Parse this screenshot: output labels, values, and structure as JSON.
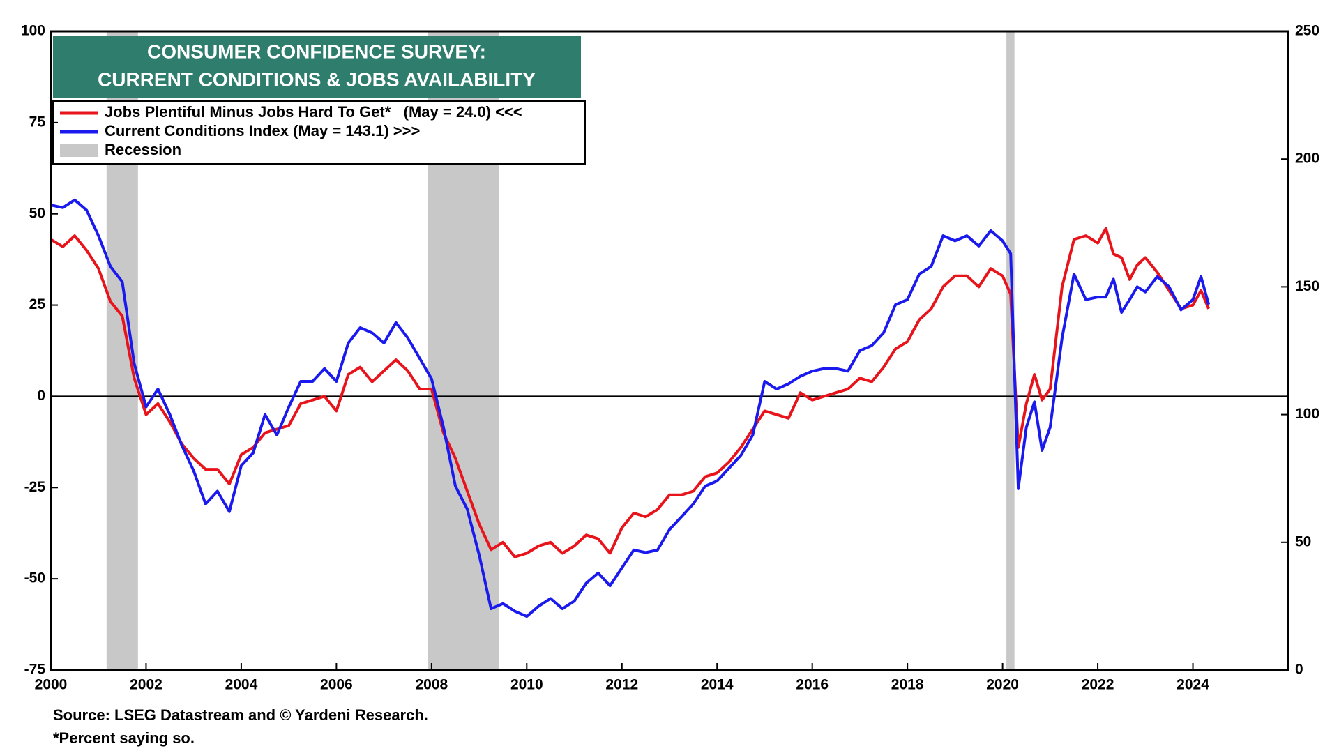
{
  "chart_data": {
    "type": "line",
    "title": [
      "CONSUMER CONFIDENCE SURVEY:",
      "CURRENT CONDITIONS & JOBS AVAILABILITY"
    ],
    "notes": [
      "Source: LSEG Datastream and © Yardeni Research.",
      "*Percent saying so."
    ],
    "title_color": "#2f7d6d",
    "xlim": [
      2000,
      2026
    ],
    "xticks": [
      2000,
      2002,
      2004,
      2006,
      2008,
      2010,
      2012,
      2014,
      2016,
      2018,
      2020,
      2022,
      2024
    ],
    "ylim": [
      -75,
      100
    ],
    "yticks": [
      -75,
      -50,
      -25,
      0,
      25,
      50,
      75,
      100
    ],
    "y2lim": [
      0,
      250
    ],
    "y2ticks": [
      0,
      50,
      100,
      150,
      200,
      250
    ],
    "hline": 0,
    "recession": {
      "name": "Recession",
      "color": "#c8c8c8",
      "spans": [
        [
          2001.17,
          2001.83
        ],
        [
          2007.92,
          2009.42
        ],
        [
          2020.08,
          2020.25
        ]
      ]
    },
    "x": [
      2000,
      2000.25,
      2000.5,
      2000.75,
      2001,
      2001.25,
      2001.5,
      2001.75,
      2002,
      2002.25,
      2002.5,
      2002.75,
      2003,
      2003.25,
      2003.5,
      2003.75,
      2004,
      2004.25,
      2004.5,
      2004.75,
      2005,
      2005.25,
      2005.5,
      2005.75,
      2006,
      2006.25,
      2006.5,
      2006.75,
      2007,
      2007.25,
      2007.5,
      2007.75,
      2008,
      2008.25,
      2008.5,
      2008.75,
      2009,
      2009.25,
      2009.5,
      2009.75,
      2010,
      2010.25,
      2010.5,
      2010.75,
      2011,
      2011.25,
      2011.5,
      2011.75,
      2012,
      2012.25,
      2012.5,
      2012.75,
      2013,
      2013.25,
      2013.5,
      2013.75,
      2014,
      2014.25,
      2014.5,
      2014.75,
      2015,
      2015.25,
      2015.5,
      2015.75,
      2016,
      2016.25,
      2016.5,
      2016.75,
      2017,
      2017.25,
      2017.5,
      2017.75,
      2018,
      2018.25,
      2018.5,
      2018.75,
      2019,
      2019.25,
      2019.5,
      2019.75,
      2020,
      2020.17,
      2020.33,
      2020.5,
      2020.67,
      2020.83,
      2021,
      2021.25,
      2021.5,
      2021.75,
      2022,
      2022.17,
      2022.33,
      2022.5,
      2022.67,
      2022.83,
      2023,
      2023.25,
      2023.5,
      2023.75,
      2024,
      2024.17,
      2024.33
    ],
    "series": [
      {
        "name": "Jobs Plentiful Minus Jobs Hard To Get*   (May = 24.0) <<<",
        "color": "#e8141c",
        "axis": "y",
        "values": [
          43,
          41,
          44,
          40,
          35,
          26,
          22,
          5,
          -5,
          -2,
          -7,
          -13,
          -17,
          -20,
          -20,
          -24,
          -16,
          -14,
          -10,
          -9,
          -8,
          -2,
          -1,
          0,
          -4,
          6,
          8,
          4,
          7,
          10,
          7,
          2,
          2,
          -10,
          -17,
          -26,
          -35,
          -42,
          -40,
          -44,
          -43,
          -41,
          -40,
          -43,
          -41,
          -38,
          -39,
          -43,
          -36,
          -32,
          -33,
          -31,
          -27,
          -27,
          -26,
          -22,
          -21,
          -18,
          -14,
          -9,
          -4,
          -5,
          -6,
          1,
          -1,
          0,
          1,
          2,
          5,
          4,
          8,
          13,
          15,
          21,
          24,
          30,
          33,
          33,
          30,
          35,
          33,
          28,
          -14,
          -2,
          6,
          -1,
          2,
          30,
          43,
          44,
          42,
          46,
          39,
          38,
          32,
          36,
          38,
          34,
          29,
          24,
          25,
          29,
          24
        ]
      },
      {
        "name": "Current Conditions Index (May = 143.1) >>>",
        "color": "#1a1aee",
        "axis": "y2",
        "values": [
          182,
          181,
          184,
          180,
          170,
          158,
          152,
          120,
          103,
          110,
          100,
          88,
          78,
          65,
          70,
          62,
          80,
          85,
          100,
          92,
          103,
          113,
          113,
          118,
          113,
          128,
          134,
          132,
          128,
          136,
          130,
          122,
          114,
          95,
          72,
          63,
          45,
          24,
          26,
          23,
          21,
          25,
          28,
          24,
          27,
          34,
          38,
          33,
          40,
          47,
          46,
          47,
          55,
          60,
          65,
          72,
          74,
          79,
          84,
          92,
          113,
          110,
          112,
          115,
          117,
          118,
          118,
          117,
          125,
          127,
          132,
          143,
          145,
          155,
          158,
          170,
          168,
          170,
          166,
          172,
          168,
          163,
          71,
          95,
          105,
          86,
          95,
          130,
          155,
          145,
          146,
          146,
          153,
          140,
          145,
          150,
          148,
          154,
          150,
          141,
          145,
          154,
          143.1
        ]
      }
    ]
  }
}
